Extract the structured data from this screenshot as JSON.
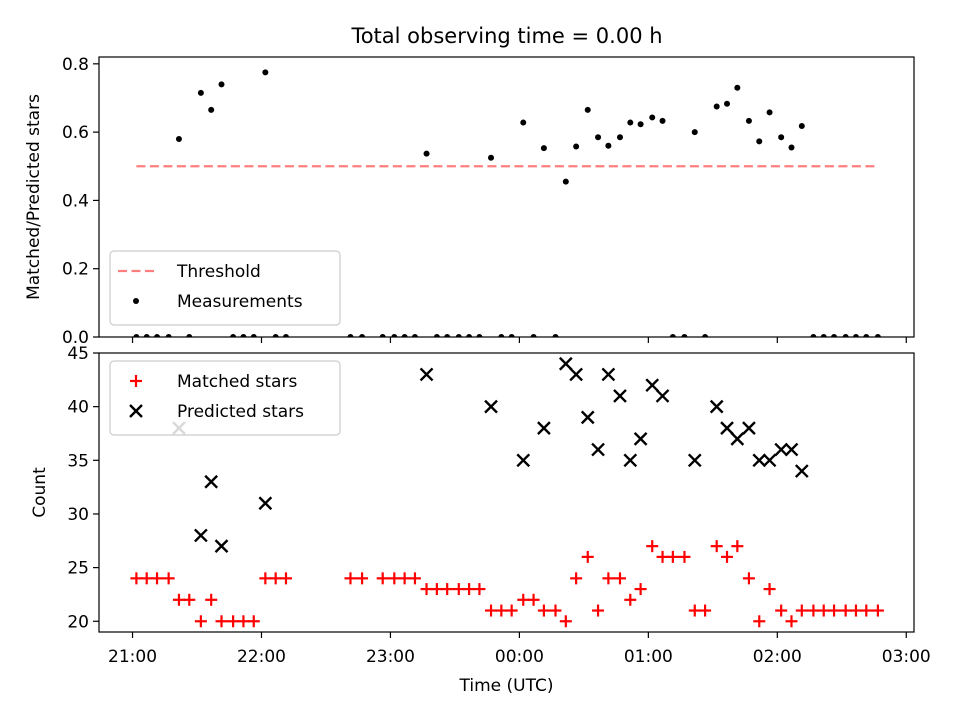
{
  "title": "Total observing time = 0.00 h",
  "chart_data": [
    {
      "type": "scatter",
      "ylabel": "Matched/Predicted stars",
      "ylim": [
        0,
        0.82
      ],
      "yticks": [
        0.0,
        0.2,
        0.4,
        0.6,
        0.8
      ],
      "ytick_labels": [
        "0.0",
        "0.2",
        "0.4",
        "0.6",
        "0.8"
      ],
      "xlim_hours": [
        -0.26,
        6.06
      ],
      "xticks_hours": [
        0,
        1,
        2,
        3,
        4,
        5,
        6
      ],
      "grid": false,
      "legend_placement": "lower-left",
      "threshold": {
        "name": "Threshold",
        "value": 0.5,
        "x_start_hours": 0.03,
        "x_end_hours": 5.78,
        "color": "#ff7f7f"
      },
      "series": [
        {
          "name": "Measurements",
          "color": "#000000",
          "points": [
            [
              0.03,
              0.0
            ],
            [
              0.11,
              0.0
            ],
            [
              0.19,
              0.0
            ],
            [
              0.28,
              0.0
            ],
            [
              0.36,
              0.58
            ],
            [
              0.44,
              0.0
            ],
            [
              0.53,
              0.715
            ],
            [
              0.61,
              0.665
            ],
            [
              0.69,
              0.74
            ],
            [
              0.78,
              0.0
            ],
            [
              0.86,
              0.0
            ],
            [
              0.94,
              0.0
            ],
            [
              1.03,
              0.775
            ],
            [
              1.11,
              0.0
            ],
            [
              1.19,
              0.0
            ],
            [
              1.69,
              0.0
            ],
            [
              1.78,
              0.0
            ],
            [
              1.94,
              0.0
            ],
            [
              2.03,
              0.0
            ],
            [
              2.11,
              0.0
            ],
            [
              2.19,
              0.0
            ],
            [
              2.28,
              0.537
            ],
            [
              2.36,
              0.0
            ],
            [
              2.44,
              0.0
            ],
            [
              2.53,
              0.0
            ],
            [
              2.61,
              0.0
            ],
            [
              2.69,
              0.0
            ],
            [
              2.78,
              0.525
            ],
            [
              2.86,
              0.0
            ],
            [
              2.94,
              0.0
            ],
            [
              3.03,
              0.628
            ],
            [
              3.11,
              0.0
            ],
            [
              3.19,
              0.553
            ],
            [
              3.28,
              0.0
            ],
            [
              3.36,
              0.455
            ],
            [
              3.44,
              0.558
            ],
            [
              3.53,
              0.665
            ],
            [
              3.61,
              0.585
            ],
            [
              3.69,
              0.56
            ],
            [
              3.78,
              0.585
            ],
            [
              3.86,
              0.628
            ],
            [
              3.94,
              0.623
            ],
            [
              4.03,
              0.643
            ],
            [
              4.11,
              0.633
            ],
            [
              4.19,
              0.0
            ],
            [
              4.28,
              0.0
            ],
            [
              4.36,
              0.6
            ],
            [
              4.44,
              0.0
            ],
            [
              4.53,
              0.675
            ],
            [
              4.61,
              0.683
            ],
            [
              4.69,
              0.73
            ],
            [
              4.78,
              0.633
            ],
            [
              4.86,
              0.573
            ],
            [
              4.94,
              0.658
            ],
            [
              5.03,
              0.585
            ],
            [
              5.11,
              0.555
            ],
            [
              5.19,
              0.618
            ],
            [
              5.28,
              0.0
            ],
            [
              5.36,
              0.0
            ],
            [
              5.44,
              0.0
            ],
            [
              5.53,
              0.0
            ],
            [
              5.61,
              0.0
            ],
            [
              5.69,
              0.0
            ],
            [
              5.78,
              0.0
            ]
          ]
        }
      ]
    },
    {
      "type": "scatter",
      "xlabel": "Time (UTC)",
      "ylabel": "Count",
      "ylim": [
        19,
        45
      ],
      "yticks": [
        20,
        25,
        30,
        35,
        40,
        45
      ],
      "ytick_labels": [
        "20",
        "25",
        "30",
        "35",
        "40",
        "45"
      ],
      "xlim_hours": [
        -0.26,
        6.06
      ],
      "xticks_hours": [
        0,
        1,
        2,
        3,
        4,
        5,
        6
      ],
      "xtick_labels": [
        "21:00",
        "22:00",
        "23:00",
        "00:00",
        "01:00",
        "02:00",
        "03:00"
      ],
      "grid": false,
      "legend_placement": "upper-left",
      "series": [
        {
          "name": "Matched stars",
          "marker": "plus",
          "color": "#ff0000",
          "points": [
            [
              0.03,
              24
            ],
            [
              0.11,
              24
            ],
            [
              0.19,
              24
            ],
            [
              0.28,
              24
            ],
            [
              0.36,
              22
            ],
            [
              0.44,
              22
            ],
            [
              0.53,
              20
            ],
            [
              0.61,
              22
            ],
            [
              0.69,
              20
            ],
            [
              0.78,
              20
            ],
            [
              0.86,
              20
            ],
            [
              0.94,
              20
            ],
            [
              1.03,
              24
            ],
            [
              1.11,
              24
            ],
            [
              1.19,
              24
            ],
            [
              1.69,
              24
            ],
            [
              1.78,
              24
            ],
            [
              1.94,
              24
            ],
            [
              2.03,
              24
            ],
            [
              2.11,
              24
            ],
            [
              2.19,
              24
            ],
            [
              2.28,
              23
            ],
            [
              2.36,
              23
            ],
            [
              2.44,
              23
            ],
            [
              2.53,
              23
            ],
            [
              2.61,
              23
            ],
            [
              2.69,
              23
            ],
            [
              2.78,
              21
            ],
            [
              2.86,
              21
            ],
            [
              2.94,
              21
            ],
            [
              3.03,
              22
            ],
            [
              3.11,
              22
            ],
            [
              3.19,
              21
            ],
            [
              3.28,
              21
            ],
            [
              3.36,
              20
            ],
            [
              3.44,
              24
            ],
            [
              3.53,
              26
            ],
            [
              3.61,
              21
            ],
            [
              3.69,
              24
            ],
            [
              3.78,
              24
            ],
            [
              3.86,
              22
            ],
            [
              3.94,
              23
            ],
            [
              4.03,
              27
            ],
            [
              4.11,
              26
            ],
            [
              4.19,
              26
            ],
            [
              4.28,
              26
            ],
            [
              4.36,
              21
            ],
            [
              4.44,
              21
            ],
            [
              4.53,
              27
            ],
            [
              4.61,
              26
            ],
            [
              4.69,
              27
            ],
            [
              4.78,
              24
            ],
            [
              4.86,
              20
            ],
            [
              4.94,
              23
            ],
            [
              5.03,
              21
            ],
            [
              5.11,
              20
            ],
            [
              5.19,
              21
            ],
            [
              5.28,
              21
            ],
            [
              5.36,
              21
            ],
            [
              5.44,
              21
            ],
            [
              5.53,
              21
            ],
            [
              5.61,
              21
            ],
            [
              5.69,
              21
            ],
            [
              5.78,
              21
            ]
          ]
        },
        {
          "name": "Predicted stars",
          "marker": "x",
          "color": "#000000",
          "points": [
            [
              0.36,
              38
            ],
            [
              0.53,
              28
            ],
            [
              0.61,
              33
            ],
            [
              0.69,
              27
            ],
            [
              1.03,
              31
            ],
            [
              2.28,
              43
            ],
            [
              2.78,
              40
            ],
            [
              3.03,
              35
            ],
            [
              3.19,
              38
            ],
            [
              3.36,
              44
            ],
            [
              3.44,
              43
            ],
            [
              3.53,
              39
            ],
            [
              3.61,
              36
            ],
            [
              3.69,
              43
            ],
            [
              3.78,
              41
            ],
            [
              3.86,
              35
            ],
            [
              3.94,
              37
            ],
            [
              4.03,
              42
            ],
            [
              4.11,
              41
            ],
            [
              4.36,
              35
            ],
            [
              4.53,
              40
            ],
            [
              4.61,
              38
            ],
            [
              4.69,
              37
            ],
            [
              4.78,
              38
            ],
            [
              4.86,
              35
            ],
            [
              4.94,
              35
            ],
            [
              5.03,
              36
            ],
            [
              5.11,
              36
            ],
            [
              5.19,
              34
            ]
          ]
        }
      ]
    }
  ]
}
